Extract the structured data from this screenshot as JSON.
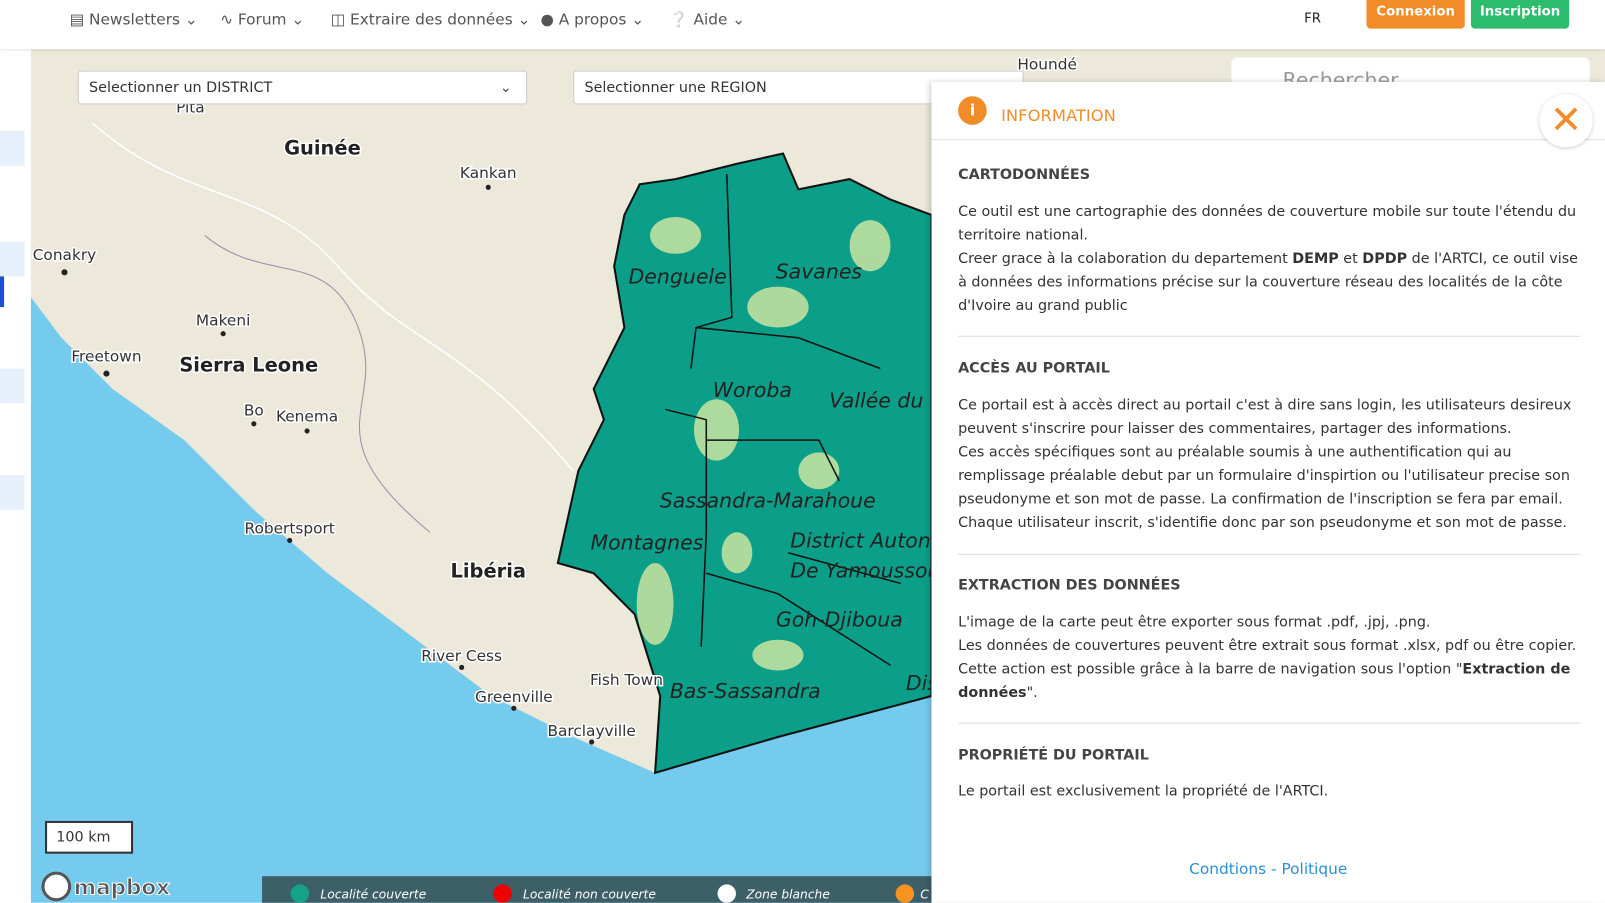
{
  "nav": {
    "items": [
      "Newsletters",
      "Forum",
      "Extraire des données",
      "A propos",
      "Aide"
    ],
    "language": "FR",
    "buttons": [
      "Connexion",
      "Inscription"
    ]
  },
  "filters": {
    "district": "Selectionner un DISTRICT",
    "region": "Selectionner une REGION"
  },
  "search": "Rechercher",
  "map": {
    "places": [
      "Guinée",
      "Kankan",
      "Conakry",
      "Makeni",
      "Freetown",
      "Sierra Leone",
      "Bo",
      "Kenema",
      "Robertsport",
      "Libéria",
      "River Cess",
      "Fish Town",
      "Greenville",
      "Barclayville",
      "Houndé",
      "Pita"
    ],
    "regions": [
      "Denguele",
      "Savanes",
      "Woroba",
      "Vallée du B",
      "Sassandra-Marahoue",
      "Montagnes",
      "District Autono",
      "De Yamoussou",
      "Goh-Djiboua",
      "Bas-Sassandra",
      "Dis"
    ],
    "scale": "100 km",
    "attribution": "mapbox"
  },
  "legend": [
    "Localité couverte",
    "Localité non couverte",
    "Zone blanche",
    "C"
  ],
  "panel": {
    "title": "INFORMATION",
    "sections": [
      {
        "heading": "CARTODONNÉES",
        "paragraphs": [
          [
            "Ce outil est une cartographie des données de couverture mobile sur toute l'étendu du territoire national."
          ],
          [
            "Creer grace à la colaboration du departement ",
            {
              "bold": "DEMP"
            },
            " et ",
            {
              "bold": "DPDP"
            },
            " de l'ARTCI, ce outil vise à données des informations précise sur la couverture réseau des localités de la côte d'Ivoire au grand public"
          ]
        ]
      },
      {
        "heading": "ACCÈS AU PORTAIL",
        "paragraphs": [
          [
            "Ce portail est à accès direct au portail c'est à dire sans login, les utilisateurs desireux peuvent s'inscrire pour laisser des commentaires, partager des informations."
          ],
          [
            "Ces accès spécifiques sont au préalable soumis à une authentification qui au remplissage préalable debut par un formulaire d'inspirtion ou l'utilisateur precise son pseudonyme et son mot de passe. La confirmation de l'inscription se fera par email."
          ],
          [
            "Chaque utilisateur inscrit, s'identifie donc par son pseudonyme et son mot de passe."
          ]
        ]
      },
      {
        "heading": "EXTRACTION DES DONNÉES",
        "paragraphs": [
          [
            "L'image de la carte peut être exporter sous format .pdf, .jpj, .png."
          ],
          [
            "Les données de couvertures peuvent être extrait sous format .xlsx, pdf ou être copier."
          ],
          [
            "Cette action est possible grâce à la barre de navigation sous l'option \"",
            {
              "bold": "Extraction de données"
            },
            "\"."
          ]
        ]
      },
      {
        "heading": "PROPRIÉTÉ DU PORTAIL",
        "paragraphs": [
          [
            "Le portail est exclusivement la propriété de l'ARTCI."
          ]
        ]
      }
    ],
    "footer": "Condtions - Politique"
  }
}
